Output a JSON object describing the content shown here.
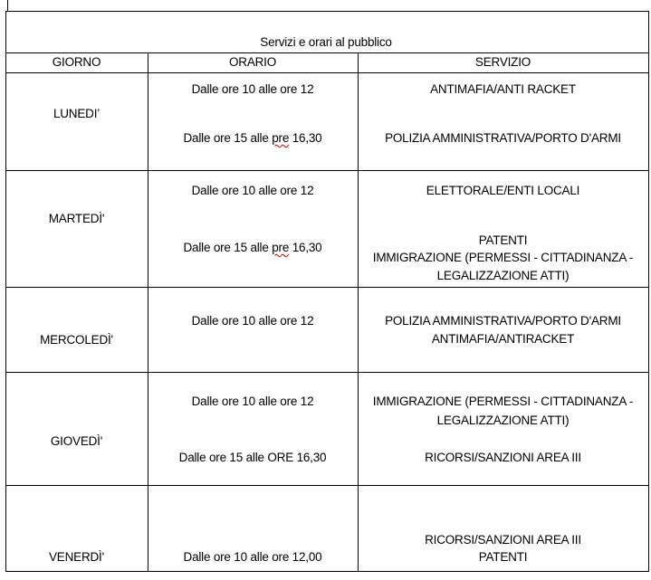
{
  "table": {
    "title": "Servizi e orari al pubblico",
    "headers": {
      "giorno": "GIORNO",
      "orario": "ORARIO",
      "servizio": "SERVIZIO"
    },
    "rows": [
      {
        "day": "LUNEDI’",
        "orario": [
          [
            "Dalle ore 10 alle ore 12"
          ],
          [
            "Dalle ore 15 alle ",
            "pre",
            " 16,30"
          ]
        ],
        "servizio": [
          "ANTIMAFIA/ANTI RACKET",
          "POLIZIA AMMINISTRATIVA/PORTO D'ARMI"
        ]
      },
      {
        "day": "MARTEDÌ'",
        "orario": [
          [
            "Dalle ore 10 alle ore 12"
          ],
          [
            "Dalle ore 15 alle ",
            "pre",
            " 16,30"
          ]
        ],
        "servizio": [
          "ELETTORALE/ENTI LOCALI",
          "PATENTI",
          "IMMIGRAZIONE (PERMESSI - CITTADINANZA -",
          "LEGALIZZAZIONE ATTI)"
        ]
      },
      {
        "day": "MERCOLEDÌ'",
        "orario": [
          [
            "Dalle ore 10 alle ore 12"
          ]
        ],
        "servizio": [
          "POLIZIA AMMINISTRATIVA/PORTO D'ARMI",
          "ANTIMAFIA/ANTIRACKET"
        ]
      },
      {
        "day": "GIOVEDÌ'",
        "orario": [
          [
            "Dalle ore 10 alle ore 12"
          ],
          [
            "Dalle ore 15 alle ORE 16,30"
          ]
        ],
        "servizio": [
          "IMMIGRAZIONE (PERMESSI - CITTADINANZA -",
          "LEGALIZZAZIONE ATTI)",
          "RICORSI/SANZIONI AREA III"
        ]
      },
      {
        "day": "VENERDÌ'",
        "orario": [
          [
            "Dalle ore 10 alle ore 12,00"
          ]
        ],
        "servizio": [
          "RICORSI/SANZIONI AREA III",
          "PATENTI"
        ]
      }
    ]
  }
}
